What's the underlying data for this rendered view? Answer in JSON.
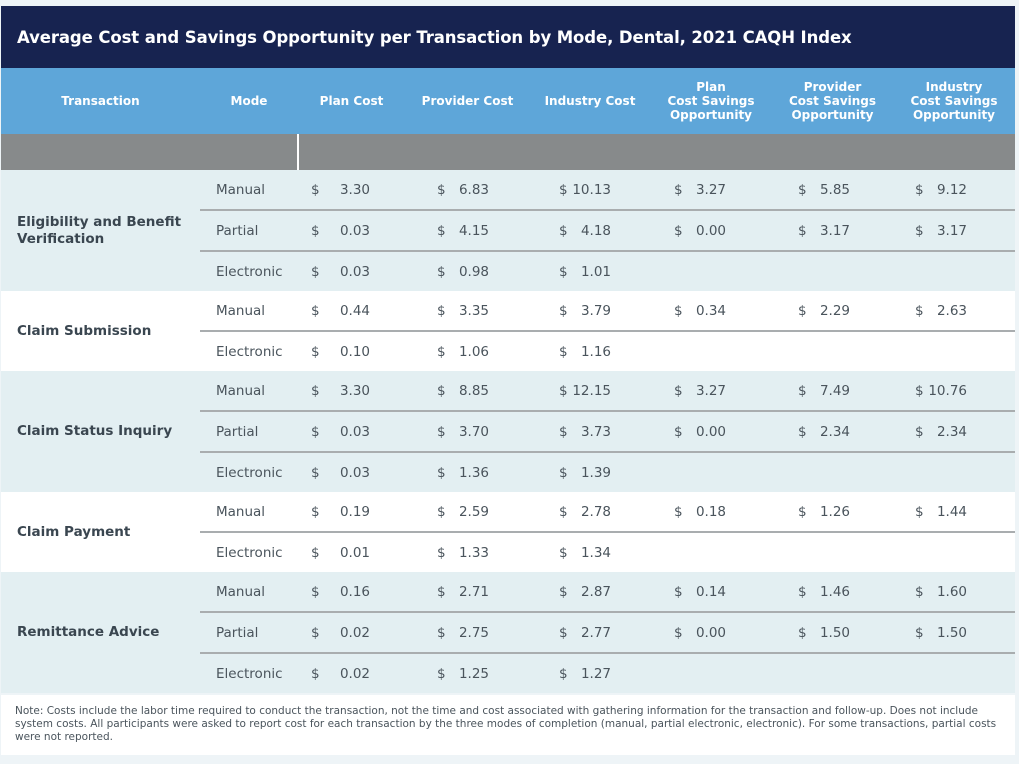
{
  "title": "Average Cost and Savings Opportunity per Transaction by Mode, Dental, 2021 CAQH Index",
  "columns": [
    "Transaction",
    "Mode",
    "Plan Cost",
    "Provider Cost",
    "Industry Cost",
    "Plan\nCost Savings\nOpportunity",
    "Provider\nCost Savings\nOpportunity",
    "Industry\nCost Savings\nOpportunity"
  ],
  "currency_symbol": "$",
  "groups": [
    {
      "transaction": "Eligibility and Benefit Verification",
      "rows": [
        {
          "mode": "Manual",
          "values": [
            "3.30",
            "6.83",
            "10.13",
            "3.27",
            "5.85",
            "9.12"
          ]
        },
        {
          "mode": "Partial",
          "values": [
            "0.03",
            "4.15",
            "4.18",
            "0.00",
            "3.17",
            "3.17"
          ]
        },
        {
          "mode": "Electronic",
          "values": [
            "0.03",
            "0.98",
            "1.01",
            "",
            "",
            ""
          ]
        }
      ]
    },
    {
      "transaction": "Claim Submission",
      "rows": [
        {
          "mode": "Manual",
          "values": [
            "0.44",
            "3.35",
            "3.79",
            "0.34",
            "2.29",
            "2.63"
          ]
        },
        {
          "mode": "Electronic",
          "values": [
            "0.10",
            "1.06",
            "1.16",
            "",
            "",
            ""
          ]
        }
      ]
    },
    {
      "transaction": "Claim Status Inquiry",
      "rows": [
        {
          "mode": "Manual",
          "values": [
            "3.30",
            "8.85",
            "12.15",
            "3.27",
            "7.49",
            "10.76"
          ]
        },
        {
          "mode": "Partial",
          "values": [
            "0.03",
            "3.70",
            "3.73",
            "0.00",
            "2.34",
            "2.34"
          ]
        },
        {
          "mode": "Electronic",
          "values": [
            "0.03",
            "1.36",
            "1.39",
            "",
            "",
            ""
          ]
        }
      ]
    },
    {
      "transaction": "Claim Payment",
      "rows": [
        {
          "mode": "Manual",
          "values": [
            "0.19",
            "2.59",
            "2.78",
            "0.18",
            "1.26",
            "1.44"
          ]
        },
        {
          "mode": "Electronic",
          "values": [
            "0.01",
            "1.33",
            "1.34",
            "",
            "",
            ""
          ]
        }
      ]
    },
    {
      "transaction": "Remittance Advice",
      "rows": [
        {
          "mode": "Manual",
          "values": [
            "0.16",
            "2.71",
            "2.87",
            "0.14",
            "1.46",
            "1.60"
          ]
        },
        {
          "mode": "Partial",
          "values": [
            "0.02",
            "2.75",
            "2.77",
            "0.00",
            "1.50",
            "1.50"
          ]
        },
        {
          "mode": "Electronic",
          "values": [
            "0.02",
            "1.25",
            "1.27",
            "",
            "",
            ""
          ]
        }
      ]
    }
  ],
  "note": "Note: Costs include the labor time required to conduct the transaction, not the time and cost associated with gathering information for the transaction and follow-up. Does not include system costs. All participants were asked to report cost for each transaction by the three modes of completion (manual, partial electronic, electronic). For some transactions, partial costs were not reported.",
  "colors": {
    "title_bg": "#172350",
    "header_bg": "#5ea6d9",
    "band_gray": "#878a8b",
    "group_shade": "#e3eff2"
  }
}
